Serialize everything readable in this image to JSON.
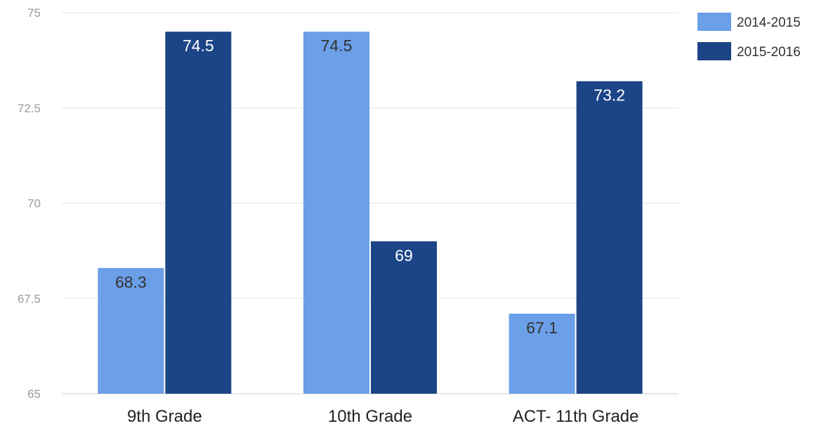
{
  "chart_data": {
    "type": "bar",
    "categories": [
      "9th Grade",
      "10th Grade",
      "ACT- 11th Grade"
    ],
    "series": [
      {
        "name": "2014-2015",
        "values": [
          68.3,
          74.5,
          67.1
        ],
        "labels": [
          "68.3",
          "74.5",
          "67.1"
        ],
        "color": "#6b9fe8",
        "label_color": "#333333"
      },
      {
        "name": "2015-2016",
        "values": [
          74.5,
          69,
          73.2
        ],
        "labels": [
          "74.5",
          "69",
          "73.2"
        ],
        "color": "#1c4587",
        "label_color": "#ffffff"
      }
    ],
    "ylim": [
      65,
      75
    ],
    "yticks": [
      65,
      67.5,
      70,
      72.5,
      75
    ],
    "ytick_labels": [
      "65",
      "67.5",
      "70",
      "72.5",
      "75"
    ],
    "title": "",
    "xlabel": "",
    "ylabel": "",
    "grid": true,
    "legend_position": "top-right",
    "colors": {
      "grid": "#e3e3e3",
      "baseline": "#cfcfcf"
    }
  }
}
